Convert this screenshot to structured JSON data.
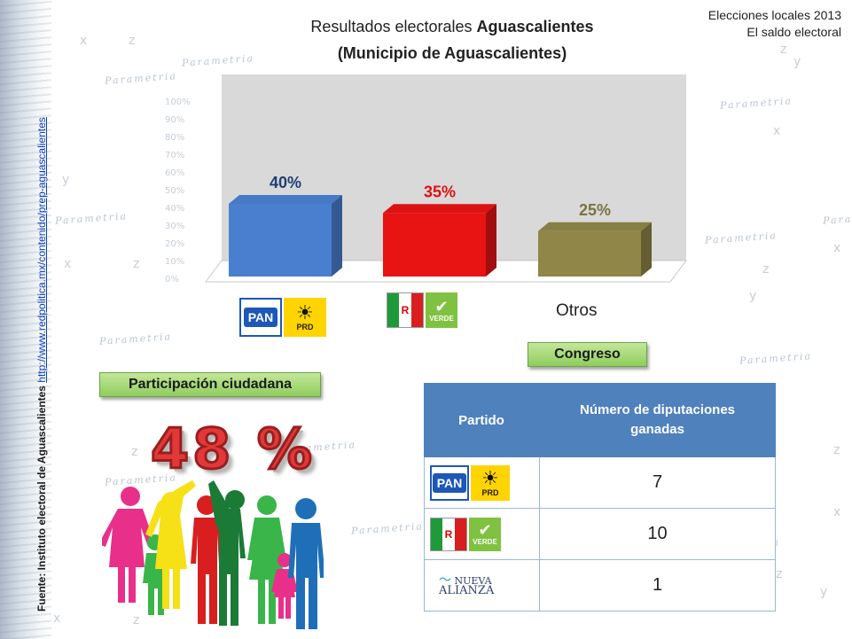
{
  "header": {
    "title_prefix": "Resultados electorales ",
    "title_bold": "Aguascalientes",
    "subtitle": "(Municipio de Aguascalientes)",
    "corner_line1": "Elecciones locales 2013",
    "corner_line2": "El saldo electoral"
  },
  "source": {
    "label": "Fuente: Instituto electoral de Aguascalientes",
    "url": "http://www.redpolitica.mx/contenido/prep-aguascalientes"
  },
  "watermark": {
    "text": "Parametria",
    "gauge_ticks": [
      "100%",
      "90%",
      "80%",
      "70%",
      "60%",
      "50%",
      "40%",
      "30%",
      "20%",
      "10%",
      "0%"
    ]
  },
  "chart_data": {
    "type": "bar",
    "categories": [
      "PAN-PRD",
      "PRI-PVEM",
      "Otros"
    ],
    "values": [
      40,
      35,
      25
    ],
    "data_labels": [
      "40%",
      "35%",
      "25%"
    ],
    "colors": [
      "#4a7fd0",
      "#e81313",
      "#8f8648"
    ],
    "label_colors": [
      "#1f3f72",
      "#e01010",
      "#7a7340"
    ],
    "ylim": [
      0,
      100
    ],
    "title": "Resultados electorales Aguascalientes (Municipio de Aguascalientes)"
  },
  "category_labels": {
    "otros": "Otros"
  },
  "logos": {
    "pan": "PAN",
    "prd": "PRD",
    "pri": "PRI",
    "verde": "VERDE",
    "nueva_alianza_line1": "NUEVA",
    "nueva_alianza_line2": "ALIANZA"
  },
  "participation": {
    "label": "Participación ciudadana",
    "value": "48 %"
  },
  "congress": {
    "label": "Congreso",
    "headers": [
      "Partido",
      "Número de diputaciones ganadas"
    ],
    "rows": [
      {
        "party": "PAN-PRD",
        "seats": "7"
      },
      {
        "party": "PRI-PVEM",
        "seats": "10"
      },
      {
        "party": "Nueva Alianza",
        "seats": "1"
      }
    ]
  },
  "colors": {
    "table_header": "#4f81bd",
    "pill_green": "#8fcc5d",
    "big_number": "#e23838"
  }
}
